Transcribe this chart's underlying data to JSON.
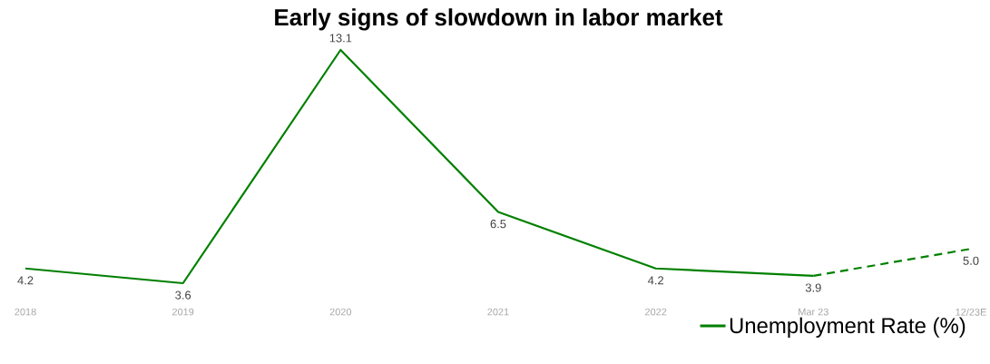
{
  "chart_data": {
    "type": "line",
    "title": "Early signs of slowdown in labor market",
    "categories": [
      "2018",
      "2019",
      "2020",
      "2021",
      "2022",
      "Mar 23",
      "12/23E"
    ],
    "series": [
      {
        "name": "Unemployment Rate (%)",
        "color": "#008000",
        "line_style": "solid",
        "values": [
          4.2,
          3.6,
          13.1,
          6.5,
          4.2,
          3.9,
          null
        ],
        "value_labels": [
          "4.2",
          "3.6",
          "13.1",
          "6.5",
          "4.2",
          "3.9",
          null
        ]
      },
      {
        "color": "#008000",
        "line_style": "dashed",
        "values": [
          null,
          null,
          null,
          null,
          null,
          3.9,
          5.0
        ],
        "value_labels": [
          null,
          null,
          null,
          null,
          null,
          null,
          "5.0"
        ]
      }
    ],
    "legend": "bottom right",
    "marker": "none"
  }
}
